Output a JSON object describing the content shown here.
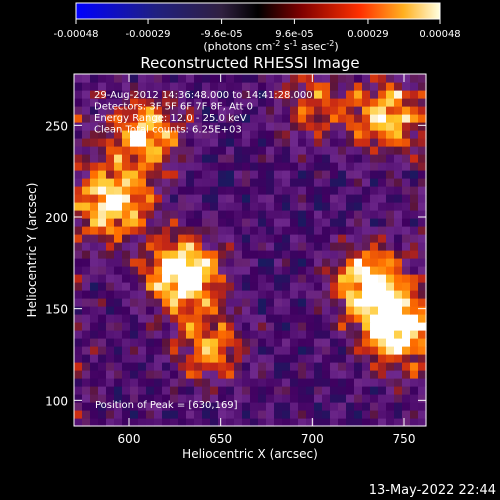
{
  "colorbar": {
    "ticks": [
      "-0.00048",
      "-0.00029",
      "-9.6e-05",
      "9.6e-05",
      "0.00029",
      "0.00048"
    ],
    "tick_values": [
      -0.00048,
      -0.00029,
      -9.6e-05,
      9.6e-05,
      0.00029,
      0.00048
    ],
    "range": [
      -0.00048,
      0.00048
    ],
    "label": "(photons cm",
    "label_exp1": "-2",
    "label_mid": " s",
    "label_exp2": "-1",
    "label_mid2": " asec",
    "label_exp3": "-2",
    "label_end": ")"
  },
  "chart_data": {
    "type": "heatmap",
    "title": "Reconstructed RHESSI Image",
    "xlabel": "Heliocentric X (arcsec)",
    "ylabel": "Heliocentric Y (arcsec)",
    "x_ticks": [
      600,
      650,
      700,
      750
    ],
    "y_ticks": [
      100,
      150,
      200,
      250
    ],
    "xlim": [
      570,
      762
    ],
    "ylim": [
      86,
      278
    ],
    "info_lines": [
      "29-Aug-2012 14:36:48.000 to 14:41:28.000",
      "Detectors: 3F 5F 6F 7F 8F, Att 0",
      "Energy Range: 12.0 - 25.0 keV",
      "Clean     Total counts: 6.25E+03"
    ],
    "peak_label": "Position of Peak = [630,169]",
    "peak": [
      630,
      169
    ],
    "sources": [
      {
        "x": 630,
        "y": 169,
        "intensity": 1.0
      },
      {
        "x": 592,
        "y": 208,
        "intensity": 0.78
      },
      {
        "x": 610,
        "y": 245,
        "intensity": 0.72
      },
      {
        "x": 745,
        "y": 138,
        "intensity": 0.85
      },
      {
        "x": 730,
        "y": 165,
        "intensity": 0.8
      },
      {
        "x": 740,
        "y": 255,
        "intensity": 0.65
      },
      {
        "x": 645,
        "y": 128,
        "intensity": 0.55
      },
      {
        "x": 700,
        "y": 262,
        "intensity": 0.45
      }
    ],
    "colors": [
      "#0000ff",
      "#1a1a60",
      "#400060",
      "#8a2a8a",
      "#d03020",
      "#ff7000",
      "#ffcc30",
      "#ffffff"
    ]
  },
  "footer": {
    "timestamp": "13-May-2022 22:44"
  }
}
